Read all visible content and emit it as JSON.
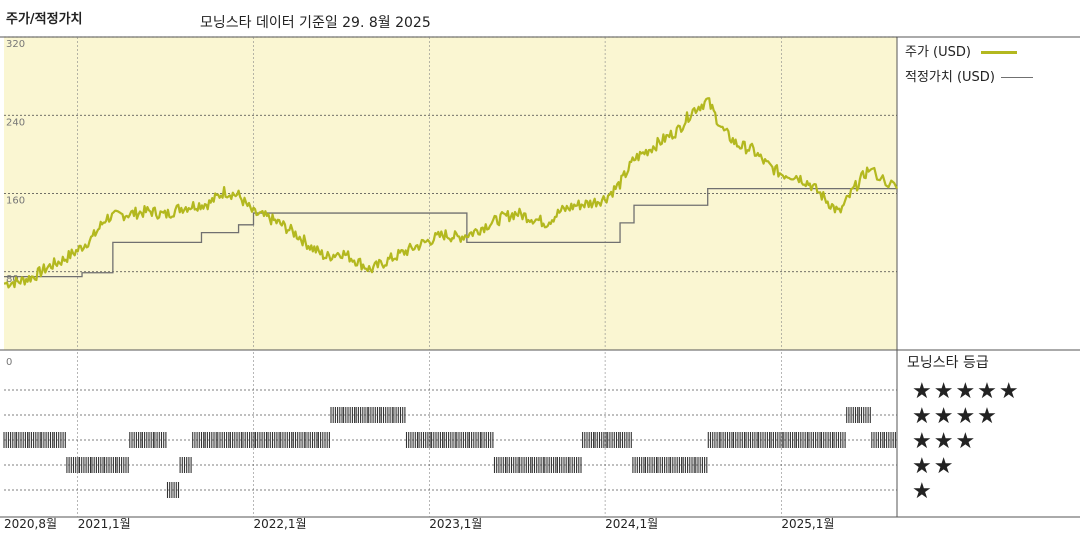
{
  "header": {
    "title": "주가/적정가치",
    "subtitle": "모닝스타 데이터 기준일 29. 8월 2025"
  },
  "legend": {
    "price_label": "주가 (USD)",
    "fair_label": "적정가치 (USD)",
    "rating_title": "모닝스타 등급"
  },
  "colors": {
    "price": "#b3b81f",
    "fair": "#707070",
    "plot_bg": "#faf6d2",
    "rating_bar": "#333333"
  },
  "chart_data": {
    "type": "line",
    "title": "주가/적정가치",
    "x_tick_labels": [
      "2020,8월",
      "2021,1월",
      "2022,1월",
      "2023,1월",
      "2024,1월",
      "2025,1월"
    ],
    "x_tick_dates": [
      "2020-08",
      "2021-01",
      "2022-01",
      "2023-01",
      "2024-01",
      "2025-01"
    ],
    "x_range": [
      "2020-08-01",
      "2025-08-29"
    ],
    "y_ticks": [
      80,
      160,
      240,
      320
    ],
    "ylim": [
      0,
      320
    ],
    "grid": true,
    "legend_position": "right",
    "series": [
      {
        "name": "주가 (USD)",
        "x": [
          "2020-08-01",
          "2020-09-01",
          "2020-10-01",
          "2020-11-01",
          "2020-12-01",
          "2021-01-01",
          "2021-02-01",
          "2021-03-01",
          "2021-04-01",
          "2021-05-01",
          "2021-06-01",
          "2021-07-01",
          "2021-08-01",
          "2021-09-01",
          "2021-10-01",
          "2021-11-01",
          "2021-12-01",
          "2022-01-01",
          "2022-02-01",
          "2022-03-01",
          "2022-04-01",
          "2022-05-01",
          "2022-06-01",
          "2022-07-01",
          "2022-08-01",
          "2022-09-01",
          "2022-10-01",
          "2022-11-01",
          "2022-12-01",
          "2023-01-01",
          "2023-02-01",
          "2023-03-01",
          "2023-04-01",
          "2023-05-01",
          "2023-06-01",
          "2023-07-01",
          "2023-08-01",
          "2023-09-01",
          "2023-10-01",
          "2023-11-01",
          "2023-12-01",
          "2024-01-01",
          "2024-02-01",
          "2024-03-01",
          "2024-04-01",
          "2024-05-01",
          "2024-06-01",
          "2024-07-01",
          "2024-08-01",
          "2024-09-01",
          "2024-10-01",
          "2024-11-01",
          "2024-12-01",
          "2025-01-01",
          "2025-02-01",
          "2025-03-01",
          "2025-04-01",
          "2025-05-01",
          "2025-06-01",
          "2025-07-01",
          "2025-08-29"
        ],
        "values": [
          68,
          70,
          75,
          85,
          92,
          102,
          115,
          135,
          138,
          140,
          142,
          138,
          145,
          148,
          150,
          162,
          158,
          140,
          135,
          128,
          118,
          105,
          95,
          100,
          92,
          82,
          90,
          98,
          105,
          112,
          118,
          115,
          120,
          128,
          135,
          140,
          135,
          130,
          142,
          148,
          150,
          155,
          170,
          195,
          205,
          215,
          225,
          245,
          255,
          225,
          210,
          205,
          190,
          180,
          178,
          170,
          155,
          140,
          165,
          185,
          165
        ]
      },
      {
        "name": "적정가치 (USD)",
        "x": [
          "2020-08-01",
          "2020-11-15",
          "2021-01-10",
          "2021-03-15",
          "2021-09-15",
          "2021-12-01",
          "2022-01-01",
          "2022-10-20",
          "2023-03-20",
          "2023-12-01",
          "2024-02-01",
          "2024-03-01",
          "2024-05-20",
          "2024-08-01",
          "2025-08-15",
          "2025-08-29"
        ],
        "values": [
          75,
          75,
          79,
          110,
          120,
          128,
          140,
          140,
          110,
          110,
          130,
          148,
          148,
          165,
          165,
          161
        ]
      }
    ],
    "rating_chart": {
      "categories": [
        "★★★★★",
        "★★★★",
        "★★★",
        "★★",
        "★"
      ],
      "y_ticks": [
        0
      ],
      "stars": [
        3,
        3,
        3,
        3,
        3,
        2,
        2,
        2,
        2,
        2,
        3,
        3,
        3,
        1,
        2,
        3,
        3,
        3,
        3,
        3,
        3,
        3,
        3,
        3,
        3,
        3,
        4,
        4,
        4,
        4,
        4,
        4,
        3,
        3,
        3,
        3,
        3,
        3,
        3,
        2,
        2,
        2,
        2,
        2,
        2,
        2,
        3,
        3,
        3,
        3,
        2,
        2,
        2,
        2,
        2,
        2,
        3,
        3,
        3,
        3,
        3,
        3,
        3,
        3,
        3,
        3,
        3,
        4,
        4,
        3,
        3
      ]
    }
  }
}
